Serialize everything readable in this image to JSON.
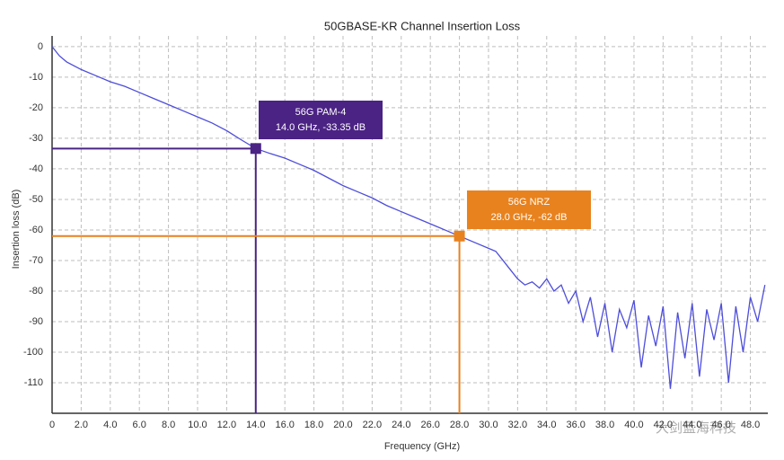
{
  "chart_data": {
    "type": "line",
    "title": "50GBASE-KR Channel Insertion Loss",
    "xlabel": "Frequency (GHz)",
    "ylabel": "Insertion loss (dB)",
    "xlim": [
      0,
      49.2
    ],
    "ylim": [
      -120,
      3.5
    ],
    "xticks": [
      0,
      {
        "value": 2,
        "label": "2.0"
      },
      {
        "value": 4,
        "label": "4.0"
      },
      {
        "value": 6,
        "label": "6.0"
      },
      {
        "value": 8,
        "label": "8.0"
      },
      {
        "value": 10,
        "label": "10.0"
      },
      {
        "value": 12,
        "label": "12.0"
      },
      {
        "value": 14,
        "label": "14.0"
      },
      {
        "value": 16,
        "label": "16.0"
      },
      {
        "value": 18,
        "label": "18.0"
      },
      {
        "value": 20,
        "label": "20.0"
      },
      {
        "value": 22,
        "label": "22.0"
      },
      {
        "value": 24,
        "label": "24.0"
      },
      {
        "value": 26,
        "label": "26.0"
      },
      {
        "value": 28,
        "label": "28.0"
      },
      {
        "value": 30,
        "label": "30.0"
      },
      {
        "value": 32,
        "label": "32.0"
      },
      {
        "value": 34,
        "label": "34.0"
      },
      {
        "value": 36,
        "label": "36.0"
      },
      {
        "value": 38,
        "label": "38.0"
      },
      {
        "value": 40,
        "label": "40.0"
      },
      {
        "value": 42,
        "label": "42.0"
      },
      {
        "value": 44,
        "label": "44.0"
      },
      {
        "value": 46,
        "label": "46.0"
      },
      {
        "value": 48,
        "label": "48.0"
      }
    ],
    "yticks": [
      0,
      -10,
      -20,
      -30,
      -40,
      -50,
      -60,
      -70,
      -80,
      -90,
      -100,
      -110
    ],
    "grid": true,
    "series": [
      {
        "name": "Insertion loss",
        "color": "#4d4ddb",
        "x": [
          0,
          0.5,
          1,
          2,
          3,
          4,
          5,
          6,
          7,
          8,
          9,
          10,
          11,
          12,
          13,
          14,
          15,
          16,
          17,
          18,
          19,
          20,
          21,
          22,
          23,
          24,
          25,
          26,
          27,
          28,
          29,
          30,
          30.5,
          31,
          31.5,
          32,
          32.5,
          33,
          33.5,
          34,
          34.5,
          35,
          35.5,
          36,
          36.5,
          37,
          37.5,
          38,
          38.5,
          39,
          39.5,
          40,
          40.5,
          41,
          41.5,
          42,
          42.5,
          43,
          43.5,
          44,
          44.5,
          45,
          45.5,
          46,
          46.5,
          47,
          47.5,
          48,
          48.5,
          49
        ],
        "values": [
          0,
          -3,
          -5,
          -7.5,
          -9.5,
          -11.5,
          -13,
          -15,
          -17,
          -19,
          -21,
          -23,
          -25,
          -27.5,
          -30.5,
          -33.35,
          -35,
          -36.5,
          -38.5,
          -40.5,
          -43,
          -45.5,
          -47.5,
          -49.5,
          -52,
          -54,
          -56,
          -58,
          -60,
          -62,
          -64,
          -66,
          -67,
          -70,
          -73,
          -76,
          -78,
          -77,
          -79,
          -76,
          -80,
          -78,
          -84,
          -80,
          -90,
          -82,
          -95,
          -84,
          -100,
          -86,
          -92,
          -83,
          -105,
          -88,
          -98,
          -85,
          -112,
          -87,
          -102,
          -84,
          -108,
          -86,
          -96,
          -84,
          -110,
          -85,
          -100,
          -82,
          -90,
          -78
        ]
      }
    ],
    "annotations": [
      {
        "x": 14,
        "y": -33.35,
        "title": "56G PAM-4",
        "label": "14.0 GHz, -33.35 dB",
        "color": "#4b2384"
      },
      {
        "x": 28,
        "y": -62,
        "title": "56G NRZ",
        "label": "28.0 GHz, -62 dB",
        "color": "#e8821e"
      }
    ],
    "watermark": "大剑蓝海科技"
  }
}
